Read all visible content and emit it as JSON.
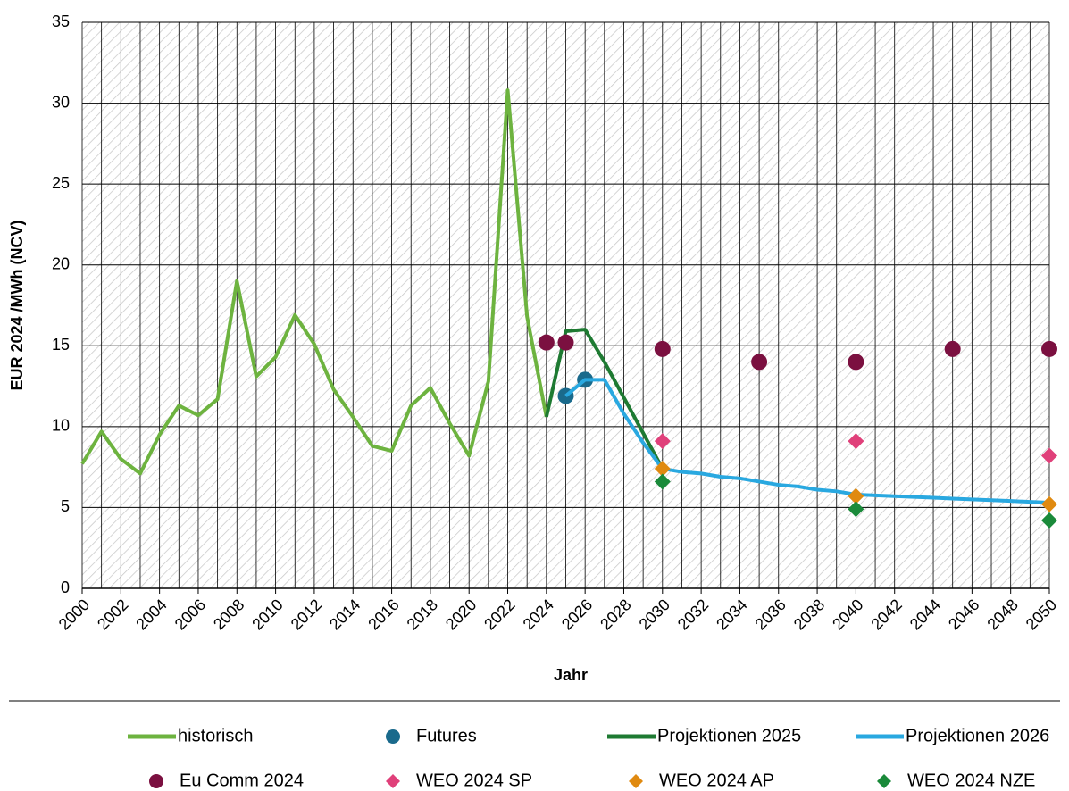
{
  "chart_data": {
    "type": "line",
    "x_label": "Jahr",
    "y_label": "EUR 2024 /MWh (NCV)",
    "xlim": [
      2000,
      2050
    ],
    "xticks": [
      2000,
      2002,
      2004,
      2006,
      2008,
      2010,
      2012,
      2014,
      2016,
      2018,
      2020,
      2022,
      2024,
      2026,
      2028,
      2030,
      2032,
      2034,
      2036,
      2038,
      2040,
      2042,
      2044,
      2046,
      2048,
      2050
    ],
    "ylim": [
      0,
      35
    ],
    "yticks": [
      0,
      5,
      10,
      15,
      20,
      25,
      30,
      35
    ],
    "grid": true,
    "series": [
      {
        "name": "historisch",
        "color": "#6db33f",
        "style": "line",
        "x": [
          2000,
          2001,
          2002,
          2003,
          2004,
          2005,
          2006,
          2007,
          2008,
          2009,
          2010,
          2011,
          2012,
          2013,
          2014,
          2015,
          2016,
          2017,
          2018,
          2019,
          2020,
          2021,
          2022,
          2023,
          2024
        ],
        "values": [
          7.7,
          9.7,
          8.0,
          7.1,
          9.5,
          11.3,
          10.7,
          11.7,
          19.0,
          13.1,
          14.3,
          16.9,
          15.1,
          12.3,
          10.6,
          8.8,
          8.5,
          11.3,
          12.4,
          10.2,
          8.2,
          12.8,
          30.8,
          16.8,
          10.6
        ]
      },
      {
        "name": "Futures",
        "color": "#1a6a8c",
        "style": "circle",
        "x": [
          2025,
          2026
        ],
        "values": [
          11.9,
          12.9
        ]
      },
      {
        "name": "Projektionen 2025",
        "color": "#1e7a32",
        "style": "line",
        "x": [
          2024,
          2025,
          2026,
          2027,
          2028,
          2029,
          2030
        ],
        "values": [
          10.6,
          15.9,
          16.0,
          14.0,
          11.8,
          9.6,
          7.4
        ]
      },
      {
        "name": "Projektionen 2026",
        "color": "#29a8e0",
        "style": "line",
        "x": [
          2025,
          2026,
          2027,
          2028,
          2029,
          2030,
          2031,
          2032,
          2033,
          2034,
          2035,
          2036,
          2037,
          2038,
          2039,
          2040,
          2041,
          2042,
          2043,
          2044,
          2045,
          2046,
          2047,
          2048,
          2049,
          2050
        ],
        "values": [
          11.9,
          12.9,
          12.9,
          10.8,
          9.0,
          7.4,
          7.2,
          7.1,
          6.9,
          6.8,
          6.6,
          6.4,
          6.3,
          6.1,
          6.0,
          5.8,
          5.75,
          5.7,
          5.65,
          5.6,
          5.55,
          5.5,
          5.45,
          5.4,
          5.35,
          5.3
        ]
      },
      {
        "name": "Eu Comm 2024",
        "color": "#7b1040",
        "style": "circle",
        "x": [
          2024,
          2025,
          2030,
          2035,
          2040,
          2045,
          2050
        ],
        "values": [
          15.2,
          15.2,
          14.8,
          14.0,
          14.0,
          14.8,
          14.8
        ]
      },
      {
        "name": "WEO 2024 SP",
        "color": "#e0407a",
        "style": "diamond",
        "x": [
          2030,
          2040,
          2050
        ],
        "values": [
          9.1,
          9.1,
          8.2
        ]
      },
      {
        "name": "WEO 2024 AP",
        "color": "#e08a10",
        "style": "diamond",
        "x": [
          2030,
          2040,
          2050
        ],
        "values": [
          7.4,
          5.7,
          5.2
        ]
      },
      {
        "name": "WEO 2024 NZE",
        "color": "#1a8a3a",
        "style": "diamond",
        "x": [
          2030,
          2040,
          2050
        ],
        "values": [
          6.6,
          4.9,
          4.2
        ]
      }
    ]
  }
}
